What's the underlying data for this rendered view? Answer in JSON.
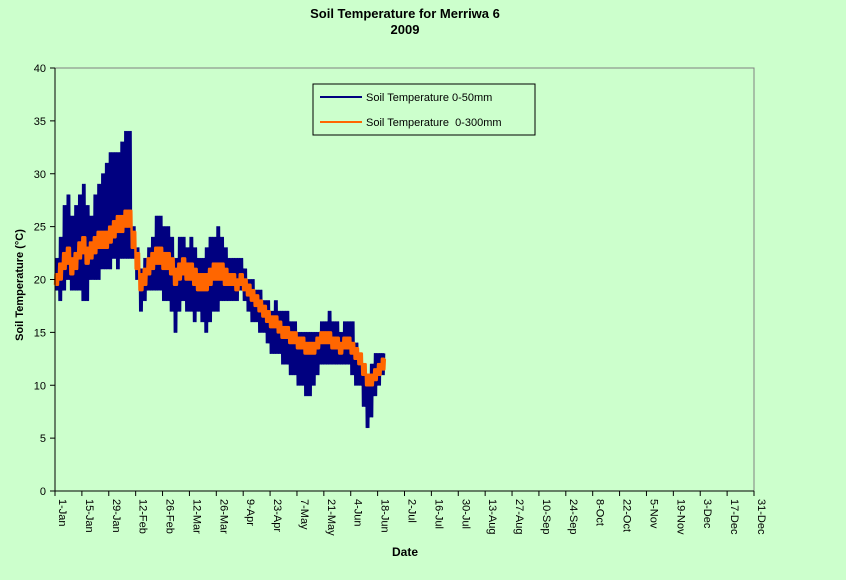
{
  "colors": {
    "background": "#ccffcc",
    "series_0_50": "#000080",
    "series_0_300": "#ff6600"
  },
  "chart_data": {
    "type": "line",
    "title": "Soil Temperature for Merriwa 6",
    "subtitle": "2009",
    "xlabel": "Date",
    "ylabel": "Soil Temperature (°C)",
    "ylim": [
      0,
      40
    ],
    "yticks": [
      0,
      5,
      10,
      15,
      20,
      25,
      30,
      35,
      40
    ],
    "xlim_day_of_year": [
      1,
      365
    ],
    "xtick_labels": [
      "1-Jan",
      "15-Jan",
      "29-Jan",
      "12-Feb",
      "26-Feb",
      "12-Mar",
      "26-Mar",
      "9-Apr",
      "23-Apr",
      "7-May",
      "21-May",
      "4-Jun",
      "18-Jun",
      "2-Jul",
      "16-Jul",
      "30-Jul",
      "13-Aug",
      "27-Aug",
      "10-Sep",
      "24-Sep",
      "8-Oct",
      "22-Oct",
      "5-Nov",
      "19-Nov",
      "3-Dec",
      "17-Dec",
      "31-Dec"
    ],
    "grid": false,
    "legend_position": "top-center",
    "series": [
      {
        "name": "Soil Temperature 0-50mm",
        "color": "#000080",
        "daily": [
          {
            "date": "1-Jan",
            "min": 19,
            "max": 22
          },
          {
            "date": "3-Jan",
            "min": 18,
            "max": 24
          },
          {
            "date": "5-Jan",
            "min": 19,
            "max": 27
          },
          {
            "date": "7-Jan",
            "min": 20,
            "max": 28
          },
          {
            "date": "9-Jan",
            "min": 19,
            "max": 26
          },
          {
            "date": "11-Jan",
            "min": 19,
            "max": 27
          },
          {
            "date": "13-Jan",
            "min": 19,
            "max": 28
          },
          {
            "date": "15-Jan",
            "min": 18,
            "max": 29
          },
          {
            "date": "17-Jan",
            "min": 18,
            "max": 27
          },
          {
            "date": "19-Jan",
            "min": 20,
            "max": 26
          },
          {
            "date": "21-Jan",
            "min": 20,
            "max": 28
          },
          {
            "date": "23-Jan",
            "min": 20,
            "max": 29
          },
          {
            "date": "25-Jan",
            "min": 21,
            "max": 30
          },
          {
            "date": "27-Jan",
            "min": 21,
            "max": 31
          },
          {
            "date": "29-Jan",
            "min": 21,
            "max": 32
          },
          {
            "date": "31-Jan",
            "min": 22,
            "max": 32
          },
          {
            "date": "2-Feb",
            "min": 21,
            "max": 32
          },
          {
            "date": "4-Feb",
            "min": 22,
            "max": 33
          },
          {
            "date": "6-Feb",
            "min": 22,
            "max": 34
          },
          {
            "date": "8-Feb",
            "min": 22,
            "max": 34
          },
          {
            "date": "10-Feb",
            "min": 22,
            "max": 25
          },
          {
            "date": "12-Feb",
            "min": 20,
            "max": 23
          },
          {
            "date": "14-Feb",
            "min": 17,
            "max": 21
          },
          {
            "date": "16-Feb",
            "min": 18,
            "max": 22
          },
          {
            "date": "18-Feb",
            "min": 19,
            "max": 23
          },
          {
            "date": "20-Feb",
            "min": 19,
            "max": 24
          },
          {
            "date": "22-Feb",
            "min": 19,
            "max": 26
          },
          {
            "date": "24-Feb",
            "min": 19,
            "max": 26
          },
          {
            "date": "26-Feb",
            "min": 18,
            "max": 25
          },
          {
            "date": "28-Feb",
            "min": 18,
            "max": 25
          },
          {
            "date": "2-Mar",
            "min": 17,
            "max": 24
          },
          {
            "date": "4-Mar",
            "min": 15,
            "max": 22
          },
          {
            "date": "6-Mar",
            "min": 17,
            "max": 24
          },
          {
            "date": "8-Mar",
            "min": 18,
            "max": 24
          },
          {
            "date": "10-Mar",
            "min": 17,
            "max": 23
          },
          {
            "date": "12-Mar",
            "min": 17,
            "max": 24
          },
          {
            "date": "14-Mar",
            "min": 16,
            "max": 23
          },
          {
            "date": "16-Mar",
            "min": 17,
            "max": 22
          },
          {
            "date": "18-Mar",
            "min": 16,
            "max": 22
          },
          {
            "date": "20-Mar",
            "min": 15,
            "max": 23
          },
          {
            "date": "22-Mar",
            "min": 16,
            "max": 24
          },
          {
            "date": "24-Mar",
            "min": 17,
            "max": 24
          },
          {
            "date": "26-Mar",
            "min": 17,
            "max": 25
          },
          {
            "date": "28-Mar",
            "min": 18,
            "max": 24
          },
          {
            "date": "30-Mar",
            "min": 18,
            "max": 23
          },
          {
            "date": "1-Apr",
            "min": 18,
            "max": 22
          },
          {
            "date": "3-Apr",
            "min": 18,
            "max": 22
          },
          {
            "date": "5-Apr",
            "min": 18,
            "max": 22
          },
          {
            "date": "7-Apr",
            "min": 19,
            "max": 22
          },
          {
            "date": "9-Apr",
            "min": 18,
            "max": 21
          },
          {
            "date": "11-Apr",
            "min": 17,
            "max": 20
          },
          {
            "date": "13-Apr",
            "min": 16,
            "max": 20
          },
          {
            "date": "15-Apr",
            "min": 16,
            "max": 19
          },
          {
            "date": "17-Apr",
            "min": 15,
            "max": 19
          },
          {
            "date": "19-Apr",
            "min": 15,
            "max": 18
          },
          {
            "date": "21-Apr",
            "min": 14,
            "max": 18
          },
          {
            "date": "23-Apr",
            "min": 13,
            "max": 17
          },
          {
            "date": "25-Apr",
            "min": 13,
            "max": 18
          },
          {
            "date": "27-Apr",
            "min": 13,
            "max": 17
          },
          {
            "date": "29-Apr",
            "min": 12,
            "max": 17
          },
          {
            "date": "1-May",
            "min": 12,
            "max": 17
          },
          {
            "date": "3-May",
            "min": 11,
            "max": 16
          },
          {
            "date": "5-May",
            "min": 11,
            "max": 16
          },
          {
            "date": "7-May",
            "min": 10,
            "max": 15
          },
          {
            "date": "9-May",
            "min": 10,
            "max": 15
          },
          {
            "date": "11-May",
            "min": 9,
            "max": 15
          },
          {
            "date": "13-May",
            "min": 9,
            "max": 15
          },
          {
            "date": "15-May",
            "min": 10,
            "max": 15
          },
          {
            "date": "17-May",
            "min": 11,
            "max": 15
          },
          {
            "date": "19-May",
            "min": 12,
            "max": 16
          },
          {
            "date": "21-May",
            "min": 12,
            "max": 16
          },
          {
            "date": "23-May",
            "min": 12,
            "max": 17
          },
          {
            "date": "25-May",
            "min": 12,
            "max": 16
          },
          {
            "date": "27-May",
            "min": 12,
            "max": 16
          },
          {
            "date": "29-May",
            "min": 12,
            "max": 15
          },
          {
            "date": "31-May",
            "min": 12,
            "max": 16
          },
          {
            "date": "2-Jun",
            "min": 12,
            "max": 16
          },
          {
            "date": "4-Jun",
            "min": 11,
            "max": 16
          },
          {
            "date": "6-Jun",
            "min": 10,
            "max": 14
          },
          {
            "date": "8-Jun",
            "min": 10,
            "max": 13
          },
          {
            "date": "10-Jun",
            "min": 8,
            "max": 12
          },
          {
            "date": "12-Jun",
            "min": 6,
            "max": 11
          },
          {
            "date": "14-Jun",
            "min": 7,
            "max": 12
          },
          {
            "date": "16-Jun",
            "min": 9,
            "max": 13
          },
          {
            "date": "18-Jun",
            "min": 10,
            "max": 13
          },
          {
            "date": "20-Jun",
            "min": 11,
            "max": 13
          }
        ]
      },
      {
        "name": "Soil Temperature  0-300mm",
        "color": "#ff6600",
        "daily": [
          {
            "date": "1-Jan",
            "min": 19.5,
            "max": 20.5
          },
          {
            "date": "3-Jan",
            "min": 20,
            "max": 21.5
          },
          {
            "date": "5-Jan",
            "min": 21,
            "max": 22.5
          },
          {
            "date": "7-Jan",
            "min": 21.5,
            "max": 23
          },
          {
            "date": "9-Jan",
            "min": 20.5,
            "max": 22
          },
          {
            "date": "11-Jan",
            "min": 21,
            "max": 22.5
          },
          {
            "date": "13-Jan",
            "min": 22,
            "max": 23.5
          },
          {
            "date": "15-Jan",
            "min": 22.5,
            "max": 24
          },
          {
            "date": "17-Jan",
            "min": 21.5,
            "max": 23
          },
          {
            "date": "19-Jan",
            "min": 22,
            "max": 23.5
          },
          {
            "date": "21-Jan",
            "min": 22.5,
            "max": 24
          },
          {
            "date": "23-Jan",
            "min": 23,
            "max": 24.5
          },
          {
            "date": "25-Jan",
            "min": 23,
            "max": 24.5
          },
          {
            "date": "27-Jan",
            "min": 23,
            "max": 24.5
          },
          {
            "date": "29-Jan",
            "min": 23.5,
            "max": 25
          },
          {
            "date": "31-Jan",
            "min": 24,
            "max": 25.5
          },
          {
            "date": "2-Feb",
            "min": 24.5,
            "max": 26
          },
          {
            "date": "4-Feb",
            "min": 24.5,
            "max": 26
          },
          {
            "date": "6-Feb",
            "min": 25,
            "max": 26.5
          },
          {
            "date": "8-Feb",
            "min": 25,
            "max": 26.5
          },
          {
            "date": "10-Feb",
            "min": 23,
            "max": 24.5
          },
          {
            "date": "12-Feb",
            "min": 21,
            "max": 22.5
          },
          {
            "date": "14-Feb",
            "min": 19,
            "max": 20.5
          },
          {
            "date": "16-Feb",
            "min": 19.5,
            "max": 21
          },
          {
            "date": "18-Feb",
            "min": 20.5,
            "max": 22
          },
          {
            "date": "20-Feb",
            "min": 21,
            "max": 22.5
          },
          {
            "date": "22-Feb",
            "min": 21.5,
            "max": 23
          },
          {
            "date": "24-Feb",
            "min": 21.5,
            "max": 23
          },
          {
            "date": "26-Feb",
            "min": 21,
            "max": 22.5
          },
          {
            "date": "28-Feb",
            "min": 21,
            "max": 22.5
          },
          {
            "date": "2-Mar",
            "min": 20.5,
            "max": 22
          },
          {
            "date": "4-Mar",
            "min": 19.5,
            "max": 21
          },
          {
            "date": "6-Mar",
            "min": 20,
            "max": 21.5
          },
          {
            "date": "8-Mar",
            "min": 20.5,
            "max": 22
          },
          {
            "date": "10-Mar",
            "min": 20,
            "max": 21.5
          },
          {
            "date": "12-Mar",
            "min": 20,
            "max": 21.5
          },
          {
            "date": "14-Mar",
            "min": 19.5,
            "max": 21
          },
          {
            "date": "16-Mar",
            "min": 19,
            "max": 20.5
          },
          {
            "date": "18-Mar",
            "min": 19,
            "max": 20.5
          },
          {
            "date": "20-Mar",
            "min": 19,
            "max": 20.5
          },
          {
            "date": "22-Mar",
            "min": 19.5,
            "max": 21
          },
          {
            "date": "24-Mar",
            "min": 20,
            "max": 21.5
          },
          {
            "date": "26-Mar",
            "min": 20,
            "max": 21.5
          },
          {
            "date": "28-Mar",
            "min": 20,
            "max": 21.5
          },
          {
            "date": "30-Mar",
            "min": 19.5,
            "max": 21
          },
          {
            "date": "1-Apr",
            "min": 19.5,
            "max": 20.5
          },
          {
            "date": "3-Apr",
            "min": 19.5,
            "max": 20.5
          },
          {
            "date": "5-Apr",
            "min": 19,
            "max": 20
          },
          {
            "date": "7-Apr",
            "min": 19.5,
            "max": 20.5
          },
          {
            "date": "9-Apr",
            "min": 19,
            "max": 20
          },
          {
            "date": "11-Apr",
            "min": 18.5,
            "max": 19.5
          },
          {
            "date": "13-Apr",
            "min": 18,
            "max": 19
          },
          {
            "date": "15-Apr",
            "min": 17.5,
            "max": 18.5
          },
          {
            "date": "17-Apr",
            "min": 17,
            "max": 18
          },
          {
            "date": "19-Apr",
            "min": 16.5,
            "max": 17.5
          },
          {
            "date": "21-Apr",
            "min": 16,
            "max": 17
          },
          {
            "date": "23-Apr",
            "min": 15.5,
            "max": 16.5
          },
          {
            "date": "25-Apr",
            "min": 15.5,
            "max": 16.5
          },
          {
            "date": "27-Apr",
            "min": 15,
            "max": 16
          },
          {
            "date": "29-Apr",
            "min": 14.5,
            "max": 15.5
          },
          {
            "date": "1-May",
            "min": 14.5,
            "max": 15.5
          },
          {
            "date": "3-May",
            "min": 14,
            "max": 15
          },
          {
            "date": "5-May",
            "min": 14,
            "max": 15
          },
          {
            "date": "7-May",
            "min": 13.5,
            "max": 14.5
          },
          {
            "date": "9-May",
            "min": 13.5,
            "max": 14.5
          },
          {
            "date": "11-May",
            "min": 13,
            "max": 14
          },
          {
            "date": "13-May",
            "min": 13,
            "max": 14
          },
          {
            "date": "15-May",
            "min": 13,
            "max": 14
          },
          {
            "date": "17-May",
            "min": 13.5,
            "max": 14.5
          },
          {
            "date": "19-May",
            "min": 14,
            "max": 15
          },
          {
            "date": "21-May",
            "min": 14,
            "max": 15
          },
          {
            "date": "23-May",
            "min": 14,
            "max": 15
          },
          {
            "date": "25-May",
            "min": 13.5,
            "max": 14.5
          },
          {
            "date": "27-May",
            "min": 13.5,
            "max": 14.5
          },
          {
            "date": "29-May",
            "min": 13,
            "max": 14
          },
          {
            "date": "31-May",
            "min": 13.5,
            "max": 14.5
          },
          {
            "date": "2-Jun",
            "min": 13.5,
            "max": 14.5
          },
          {
            "date": "4-Jun",
            "min": 13,
            "max": 14
          },
          {
            "date": "6-Jun",
            "min": 12.5,
            "max": 13.5
          },
          {
            "date": "8-Jun",
            "min": 12,
            "max": 13
          },
          {
            "date": "10-Jun",
            "min": 11,
            "max": 12
          },
          {
            "date": "12-Jun",
            "min": 10,
            "max": 11
          },
          {
            "date": "14-Jun",
            "min": 10,
            "max": 11
          },
          {
            "date": "16-Jun",
            "min": 10.5,
            "max": 11.5
          },
          {
            "date": "18-Jun",
            "min": 11,
            "max": 12
          },
          {
            "date": "20-Jun",
            "min": 11.5,
            "max": 12.5
          }
        ]
      }
    ]
  }
}
